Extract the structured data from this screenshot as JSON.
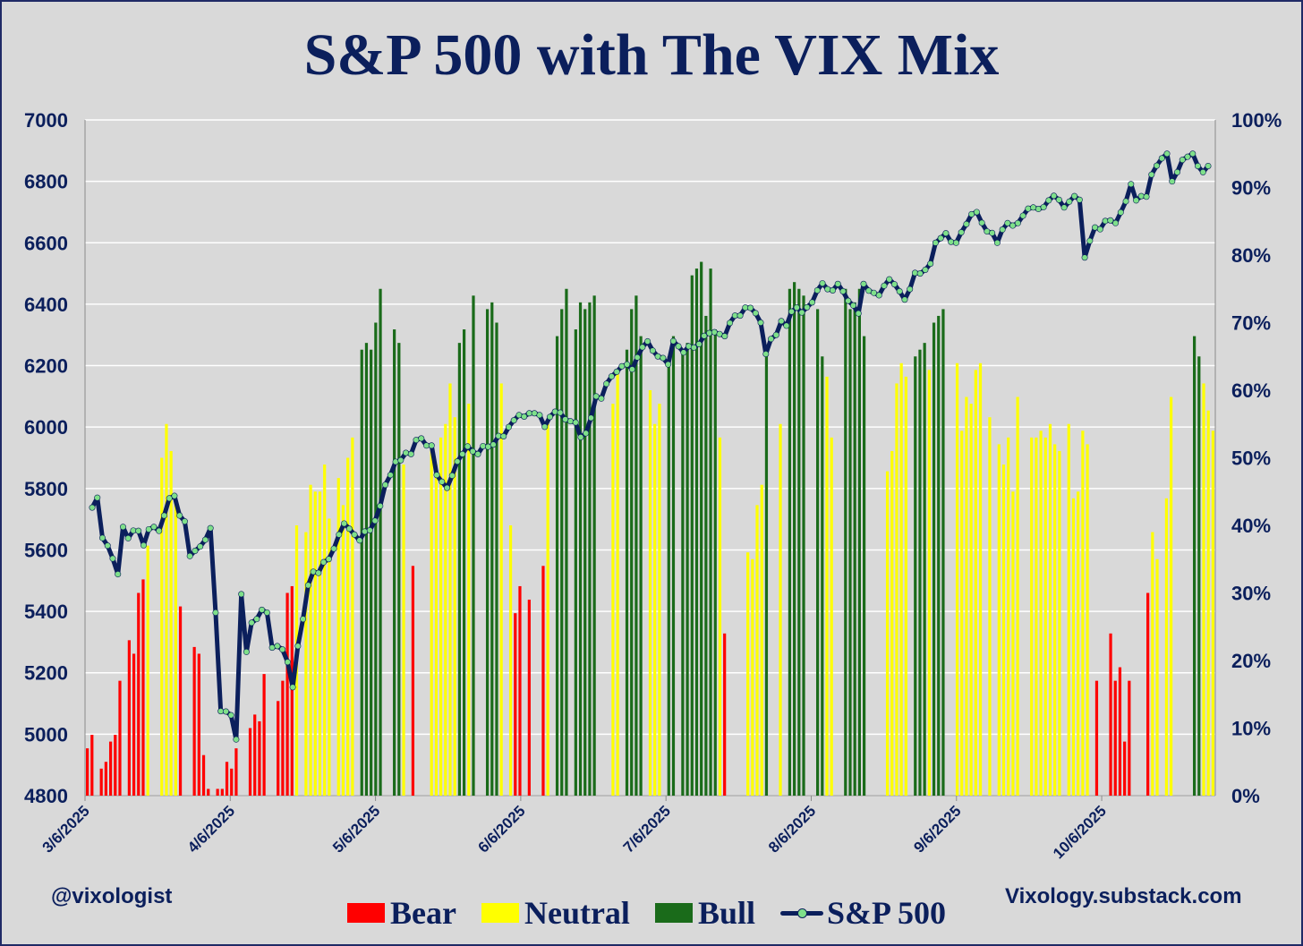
{
  "chart_data": {
    "type": "bar",
    "title": "S&P 500 with The VIX Mix",
    "left_axis": {
      "min": 4800,
      "max": 7000,
      "ticks": [
        "7000",
        "6800",
        "6600",
        "6400",
        "6200",
        "6000",
        "5800",
        "5600",
        "5400",
        "5200",
        "5000",
        "4800"
      ]
    },
    "right_axis": {
      "min": 0,
      "max": 100,
      "ticks": [
        "100%",
        "90%",
        "80%",
        "70%",
        "60%",
        "50%",
        "40%",
        "30%",
        "20%",
        "10%",
        "0%"
      ]
    },
    "x_tick_labels": [
      "3/6/2025",
      "4/6/2025",
      "5/6/2025",
      "6/6/2025",
      "7/6/2025",
      "8/6/2025",
      "9/6/2025",
      "10/6/2025"
    ],
    "grid": true,
    "legend": {
      "placement": "bottom",
      "items": [
        {
          "name": "Bear",
          "color": "#ff0000"
        },
        {
          "name": "Neutral",
          "color": "#ffff00"
        },
        {
          "name": "Bull",
          "color": "#1a6b1a"
        },
        {
          "name": "S&P 500",
          "color": "#0b1f5c"
        }
      ]
    },
    "colors": {
      "Bear": "#ff0000",
      "Neutral": "#ffff00",
      "Bull": "#1a6b1a",
      "S&P 500": "#0b1f5c",
      "marker": "#7fe08a"
    },
    "series": [
      {
        "name": "VIX Mix bars (right axis, %)",
        "kind": "bar",
        "values": [
          [
            "Bear",
            7
          ],
          [
            "Bear",
            9
          ],
          [
            "Bear",
            0
          ],
          [
            "Bear",
            4
          ],
          [
            "Bear",
            5
          ],
          [
            "Bear",
            8
          ],
          [
            "Bear",
            9
          ],
          [
            "Bear",
            17
          ],
          [
            "Bear",
            0
          ],
          [
            "Bear",
            23
          ],
          [
            "Bear",
            21
          ],
          [
            "Bear",
            30
          ],
          [
            "Bear",
            32
          ],
          [
            "Neutral",
            37
          ],
          [
            "Neutral",
            0
          ],
          [
            "Neutral",
            0
          ],
          [
            "Neutral",
            50
          ],
          [
            "Neutral",
            55
          ],
          [
            "Neutral",
            51
          ],
          [
            "Neutral",
            44
          ],
          [
            "Bear",
            28
          ],
          [
            "Bear",
            0
          ],
          [
            "Bear",
            0
          ],
          [
            "Bear",
            22
          ],
          [
            "Bear",
            21
          ],
          [
            "Bear",
            6
          ],
          [
            "Bear",
            1
          ],
          [
            "Bear",
            0
          ],
          [
            "Bear",
            1
          ],
          [
            "Bear",
            1
          ],
          [
            "Bear",
            5
          ],
          [
            "Bear",
            4
          ],
          [
            "Bear",
            7
          ],
          [
            "Bear",
            0
          ],
          [
            "Bear",
            0
          ],
          [
            "Bear",
            10
          ],
          [
            "Bear",
            12
          ],
          [
            "Bear",
            11
          ],
          [
            "Bear",
            18
          ],
          [
            "Bear",
            0
          ],
          [
            "Bear",
            0
          ],
          [
            "Bear",
            14
          ],
          [
            "Bear",
            17
          ],
          [
            "Bear",
            30
          ],
          [
            "Bear",
            31
          ],
          [
            "Neutral",
            40
          ],
          [
            "Neutral",
            0
          ],
          [
            "Neutral",
            39
          ],
          [
            "Neutral",
            46
          ],
          [
            "Neutral",
            45
          ],
          [
            "Neutral",
            45
          ],
          [
            "Neutral",
            49
          ],
          [
            "Neutral",
            41
          ],
          [
            "Neutral",
            0
          ],
          [
            "Neutral",
            47
          ],
          [
            "Neutral",
            43
          ],
          [
            "Neutral",
            50
          ],
          [
            "Neutral",
            53
          ],
          [
            "Neutral",
            0
          ],
          [
            "Bull",
            66
          ],
          [
            "Bull",
            67
          ],
          [
            "Bull",
            66
          ],
          [
            "Bull",
            70
          ],
          [
            "Bull",
            75
          ],
          [
            "Bull",
            0
          ],
          [
            "Bull",
            0
          ],
          [
            "Bull",
            69
          ],
          [
            "Bull",
            67
          ],
          [
            "Neutral",
            49
          ],
          [
            "Neutral",
            0
          ],
          [
            "Bear",
            34
          ],
          [
            "Bear",
            0
          ],
          [
            "Bear",
            0
          ],
          [
            "Neutral",
            0
          ],
          [
            "Neutral",
            52
          ],
          [
            "Neutral",
            49
          ],
          [
            "Neutral",
            53
          ],
          [
            "Neutral",
            55
          ],
          [
            "Neutral",
            61
          ],
          [
            "Neutral",
            56
          ],
          [
            "Bull",
            67
          ],
          [
            "Bull",
            69
          ],
          [
            "Neutral",
            58
          ],
          [
            "Bull",
            74
          ],
          [
            "Bull",
            0
          ],
          [
            "Bull",
            0
          ],
          [
            "Bull",
            72
          ],
          [
            "Bull",
            73
          ],
          [
            "Bull",
            70
          ],
          [
            "Neutral",
            61
          ],
          [
            "Neutral",
            0
          ],
          [
            "Neutral",
            40
          ],
          [
            "Bear",
            27
          ],
          [
            "Bear",
            31
          ],
          [
            "Bear",
            0
          ],
          [
            "Bear",
            29
          ],
          [
            "Bear",
            0
          ],
          [
            "Bear",
            0
          ],
          [
            "Bear",
            34
          ],
          [
            "Neutral",
            55
          ],
          [
            "Neutral",
            0
          ],
          [
            "Bull",
            68
          ],
          [
            "Bull",
            72
          ],
          [
            "Bull",
            75
          ],
          [
            "Bull",
            0
          ],
          [
            "Bull",
            69
          ],
          [
            "Bull",
            73
          ],
          [
            "Bull",
            72
          ],
          [
            "Bull",
            73
          ],
          [
            "Bull",
            74
          ],
          [
            "Bull",
            0
          ],
          [
            "Bull",
            0
          ],
          [
            "Bull",
            0
          ],
          [
            "Neutral",
            58
          ],
          [
            "Neutral",
            63
          ],
          [
            "Neutral",
            0
          ],
          [
            "Bull",
            66
          ],
          [
            "Bull",
            72
          ],
          [
            "Bull",
            74
          ],
          [
            "Bull",
            68
          ],
          [
            "Neutral",
            0
          ],
          [
            "Neutral",
            60
          ],
          [
            "Neutral",
            55
          ],
          [
            "Neutral",
            58
          ],
          [
            "Neutral",
            0
          ],
          [
            "Bull",
            65
          ],
          [
            "Bull",
            68
          ],
          [
            "Bull",
            0
          ],
          [
            "Bull",
            66
          ],
          [
            "Bull",
            67
          ],
          [
            "Bull",
            77
          ],
          [
            "Bull",
            78
          ],
          [
            "Bull",
            79
          ],
          [
            "Bull",
            71
          ],
          [
            "Bull",
            78
          ],
          [
            "Bull",
            69
          ],
          [
            "Neutral",
            53
          ],
          [
            "Bear",
            24
          ],
          [
            "Bear",
            0
          ],
          [
            "Bear",
            0
          ],
          [
            "Bear",
            0
          ],
          [
            "Neutral",
            0
          ],
          [
            "Neutral",
            36
          ],
          [
            "Neutral",
            35
          ],
          [
            "Neutral",
            43
          ],
          [
            "Neutral",
            46
          ],
          [
            "Bull",
            65
          ],
          [
            "Bull",
            0
          ],
          [
            "Bull",
            0
          ],
          [
            "Neutral",
            55
          ],
          [
            "Neutral",
            0
          ],
          [
            "Bull",
            75
          ],
          [
            "Bull",
            76
          ],
          [
            "Bull",
            75
          ],
          [
            "Bull",
            74
          ],
          [
            "Bull",
            0
          ],
          [
            "Bull",
            0
          ],
          [
            "Bull",
            72
          ],
          [
            "Bull",
            65
          ],
          [
            "Neutral",
            62
          ],
          [
            "Neutral",
            53
          ],
          [
            "Bull",
            0
          ],
          [
            "Bull",
            0
          ],
          [
            "Bull",
            75
          ],
          [
            "Bull",
            72
          ],
          [
            "Bull",
            73
          ],
          [
            "Bull",
            75
          ],
          [
            "Bull",
            68
          ],
          [
            "Bull",
            0
          ],
          [
            "Bull",
            0
          ],
          [
            "Neutral",
            0
          ],
          [
            "Neutral",
            0
          ],
          [
            "Neutral",
            48
          ],
          [
            "Neutral",
            51
          ],
          [
            "Neutral",
            61
          ],
          [
            "Neutral",
            64
          ],
          [
            "Neutral",
            62
          ],
          [
            "Neutral",
            0
          ],
          [
            "Bull",
            65
          ],
          [
            "Bull",
            66
          ],
          [
            "Bull",
            67
          ],
          [
            "Neutral",
            63
          ],
          [
            "Bull",
            70
          ],
          [
            "Bull",
            71
          ],
          [
            "Bull",
            72
          ],
          [
            "Neutral",
            0
          ],
          [
            "Neutral",
            0
          ],
          [
            "Neutral",
            64
          ],
          [
            "Neutral",
            54
          ],
          [
            "Neutral",
            59
          ],
          [
            "Neutral",
            58
          ],
          [
            "Neutral",
            63
          ],
          [
            "Neutral",
            64
          ],
          [
            "Neutral",
            0
          ],
          [
            "Neutral",
            56
          ],
          [
            "Neutral",
            0
          ],
          [
            "Neutral",
            52
          ],
          [
            "Neutral",
            49
          ],
          [
            "Neutral",
            53
          ],
          [
            "Neutral",
            45
          ],
          [
            "Neutral",
            59
          ],
          [
            "Neutral",
            0
          ],
          [
            "Neutral",
            0
          ],
          [
            "Neutral",
            53
          ],
          [
            "Neutral",
            53
          ],
          [
            "Neutral",
            54
          ],
          [
            "Neutral",
            53
          ],
          [
            "Neutral",
            55
          ],
          [
            "Neutral",
            52
          ],
          [
            "Neutral",
            51
          ],
          [
            "Neutral",
            0
          ],
          [
            "Neutral",
            55
          ],
          [
            "Neutral",
            44
          ],
          [
            "Neutral",
            45
          ],
          [
            "Neutral",
            54
          ],
          [
            "Neutral",
            52
          ],
          [
            "Bear",
            0
          ],
          [
            "Bear",
            17
          ],
          [
            "Bear",
            0
          ],
          [
            "Bear",
            0
          ],
          [
            "Bear",
            24
          ],
          [
            "Bear",
            17
          ],
          [
            "Bear",
            19
          ],
          [
            "Bear",
            8
          ],
          [
            "Bear",
            17
          ],
          [
            "Bear",
            0
          ],
          [
            "Bear",
            0
          ],
          [
            "Bear",
            0
          ],
          [
            "Bear",
            30
          ],
          [
            "Neutral",
            39
          ],
          [
            "Neutral",
            35
          ],
          [
            "Neutral",
            0
          ],
          [
            "Neutral",
            44
          ],
          [
            "Neutral",
            59
          ],
          [
            "Neutral",
            0
          ],
          [
            "Neutral",
            0
          ],
          [
            "Bull",
            0
          ],
          [
            "Bull",
            0
          ],
          [
            "Bull",
            68
          ],
          [
            "Bull",
            65
          ],
          [
            "Neutral",
            61
          ],
          [
            "Neutral",
            57
          ],
          [
            "Neutral",
            54
          ]
        ]
      },
      {
        "name": "S&P 500",
        "kind": "line",
        "values": [
          5738,
          5770,
          5639,
          5614,
          5572,
          5521,
          5675,
          5638,
          5663,
          5662,
          5615,
          5667,
          5675,
          5662,
          5712,
          5768,
          5776,
          5712,
          5693,
          5580,
          5597,
          5611,
          5633,
          5671,
          5396,
          5075,
          5074,
          5062,
          4983,
          5456,
          5268,
          5363,
          5375,
          5405,
          5396,
          5282,
          5287,
          5276,
          5235,
          5153,
          5287,
          5375,
          5485,
          5529,
          5525,
          5560,
          5570,
          5604,
          5650,
          5686,
          5669,
          5650,
          5631,
          5660,
          5664,
          5695,
          5743,
          5812,
          5844,
          5887,
          5892,
          5916,
          5912,
          5958,
          5963,
          5940,
          5940,
          5844,
          5822,
          5802,
          5842,
          5888,
          5912,
          5937,
          5921,
          5912,
          5938,
          5936,
          5943,
          5971,
          5970,
          6000,
          6022,
          6039,
          6034,
          6045,
          6045,
          6039,
          6001,
          6033,
          6050,
          6047,
          6025,
          6019,
          6015,
          5967,
          5980,
          6030,
          6100,
          6093,
          6141,
          6165,
          6180,
          6198,
          6204,
          6188,
          6227,
          6260,
          6279,
          6249,
          6230,
          6225,
          6204,
          6280,
          6263,
          6243,
          6263,
          6259,
          6270,
          6297,
          6306,
          6309,
          6303,
          6296,
          6339,
          6363,
          6363,
          6389,
          6388,
          6371,
          6340,
          6238,
          6287,
          6300,
          6345,
          6330,
          6376,
          6389,
          6373,
          6390,
          6406,
          6445,
          6468,
          6449,
          6445,
          6466,
          6442,
          6411,
          6396,
          6370,
          6466,
          6444,
          6437,
          6429,
          6460,
          6481,
          6465,
          6442,
          6415,
          6449,
          6502,
          6500,
          6512,
          6532,
          6600,
          6615,
          6631,
          6603,
          6600,
          6634,
          6661,
          6693,
          6700,
          6665,
          6637,
          6632,
          6600,
          6643,
          6664,
          6656,
          6664,
          6688,
          6711,
          6715,
          6710,
          6716,
          6738,
          6753,
          6740,
          6715,
          6734,
          6752,
          6740,
          6552,
          6606,
          6650,
          6644,
          6671,
          6673,
          6664,
          6699,
          6735,
          6791,
          6738,
          6752,
          6750,
          6822,
          6851,
          6875,
          6890,
          6800,
          6830,
          6870,
          6880,
          6890,
          6850,
          6830,
          6850
        ]
      }
    ]
  },
  "footer": {
    "handle": "@vixologist",
    "site": "Vixology.substack.com"
  }
}
